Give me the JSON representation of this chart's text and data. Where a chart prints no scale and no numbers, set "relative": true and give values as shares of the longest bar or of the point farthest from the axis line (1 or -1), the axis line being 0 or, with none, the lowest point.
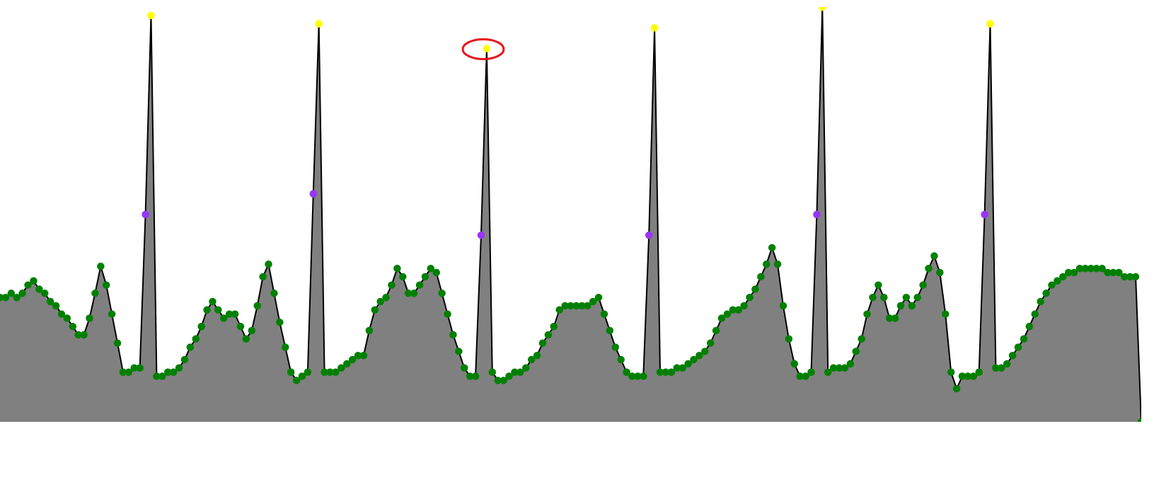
{
  "chart_data": {
    "type": "area",
    "relative": true,
    "marker": "circle",
    "categories": [
      null,
      null,
      null,
      null,
      null,
      null,
      null,
      null,
      null,
      null,
      null,
      null,
      null,
      null,
      null,
      null,
      null,
      null,
      null,
      null,
      null,
      null,
      null,
      null,
      null,
      null,
      null,
      null,
      null,
      null,
      null,
      null,
      null,
      null,
      null,
      null,
      null,
      null,
      null,
      null,
      null,
      null,
      null,
      null,
      null,
      null,
      null,
      null,
      null,
      null,
      null,
      null,
      null,
      null,
      null,
      null,
      null,
      null,
      null,
      null,
      null,
      null,
      null,
      null,
      null,
      null,
      null,
      null,
      null,
      null,
      null,
      null,
      null,
      null,
      null,
      null,
      null,
      null,
      null,
      null,
      null,
      null,
      null,
      null,
      null,
      null,
      null,
      null,
      null,
      null,
      null,
      null,
      null,
      null,
      null,
      null,
      null,
      null,
      null,
      null,
      null,
      null,
      null,
      null,
      null,
      null,
      null,
      null,
      null,
      null,
      null,
      null,
      null,
      null,
      null,
      null,
      null,
      null,
      null,
      null,
      null,
      null,
      null,
      null,
      null,
      null,
      null,
      null,
      null,
      null,
      null,
      null,
      null,
      null,
      null,
      null,
      null,
      null,
      null,
      null,
      null,
      null,
      null,
      null,
      null,
      null,
      null,
      null,
      null,
      null,
      null,
      null,
      null,
      null,
      null,
      null,
      null,
      null,
      null,
      null,
      null,
      null,
      null,
      null,
      null,
      null,
      null,
      null,
      null,
      null,
      null,
      null,
      null,
      null,
      null,
      null,
      null,
      null,
      null,
      null,
      null,
      null,
      null,
      null,
      null,
      null,
      null,
      null,
      null,
      null,
      null,
      null,
      null,
      null,
      null,
      null,
      null,
      null,
      null,
      null,
      null,
      null,
      null,
      null,
      null
    ],
    "series": [
      {
        "color": "#808080",
        "values": [
          0.3,
          0.3,
          0.31,
          0.3,
          0.31,
          0.33,
          0.34,
          0.32,
          0.31,
          0.29,
          0.28,
          0.26,
          0.25,
          0.23,
          0.21,
          0.21,
          0.25,
          0.31,
          0.375,
          0.33,
          0.26,
          0.19,
          0.12,
          0.12,
          0.13,
          0.13,
          0.5,
          0.98,
          0.11,
          0.11,
          0.12,
          0.12,
          0.13,
          0.15,
          0.18,
          0.2,
          0.23,
          0.27,
          0.29,
          0.27,
          0.25,
          0.26,
          0.26,
          0.23,
          0.2,
          0.22,
          0.28,
          0.35,
          0.38,
          0.31,
          0.24,
          0.18,
          0.12,
          0.1,
          0.11,
          0.12,
          0.55,
          0.96,
          0.12,
          0.12,
          0.12,
          0.13,
          0.14,
          0.15,
          0.16,
          0.16,
          0.22,
          0.27,
          0.29,
          0.3,
          0.33,
          0.37,
          0.35,
          0.31,
          0.31,
          0.33,
          0.35,
          0.37,
          0.36,
          0.31,
          0.26,
          0.21,
          0.17,
          0.13,
          0.11,
          0.11,
          0.45,
          0.9,
          0.12,
          0.1,
          0.1,
          0.11,
          0.12,
          0.12,
          0.13,
          0.15,
          0.16,
          0.19,
          0.21,
          0.23,
          0.27,
          0.28,
          0.28,
          0.28,
          0.28,
          0.28,
          0.29,
          0.3,
          0.26,
          0.22,
          0.18,
          0.15,
          0.12,
          0.11,
          0.11,
          0.11,
          0.45,
          0.95,
          0.12,
          0.12,
          0.12,
          0.13,
          0.13,
          0.14,
          0.15,
          0.16,
          0.17,
          0.19,
          0.22,
          0.25,
          0.26,
          0.27,
          0.27,
          0.28,
          0.3,
          0.32,
          0.35,
          0.38,
          0.42,
          0.38,
          0.28,
          0.2,
          0.14,
          0.11,
          0.11,
          0.12,
          0.5,
          1.0,
          0.12,
          0.13,
          0.13,
          0.13,
          0.14,
          0.17,
          0.2,
          0.26,
          0.3,
          0.33,
          0.3,
          0.25,
          0.25,
          0.28,
          0.3,
          0.28,
          0.3,
          0.33,
          0.37,
          0.4,
          0.36,
          0.26,
          0.12,
          0.08,
          0.11,
          0.11,
          0.11,
          0.12,
          0.5,
          0.96,
          0.13,
          0.13,
          0.14,
          0.16,
          0.18,
          0.2,
          0.23,
          0.26,
          0.29,
          0.31,
          0.33,
          0.34,
          0.35,
          0.36,
          0.36,
          0.37,
          0.37,
          0.37,
          0.37,
          0.37,
          0.36,
          0.36,
          0.36,
          0.35,
          0.35,
          0.35,
          0
        ],
        "colors": [
          "#008000",
          "#008000",
          "#008000",
          "#008000",
          "#008000",
          "#008000",
          "#008000",
          "#008000",
          "#008000",
          "#008000",
          "#008000",
          "#008000",
          "#008000",
          "#008000",
          "#008000",
          "#008000",
          "#008000",
          "#008000",
          "#008000",
          "#008000",
          "#008000",
          "#008000",
          "#008000",
          "#008000",
          "#008000",
          "#008000",
          "#9933ff",
          "#ffff00",
          "#008000",
          "#008000",
          "#008000",
          "#008000",
          "#008000",
          "#008000",
          "#008000",
          "#008000",
          "#008000",
          "#008000",
          "#008000",
          "#008000",
          "#008000",
          "#008000",
          "#008000",
          "#008000",
          "#008000",
          "#008000",
          "#008000",
          "#008000",
          "#008000",
          "#008000",
          "#008000",
          "#008000",
          "#008000",
          "#008000",
          "#008000",
          "#008000",
          "#9933ff",
          "#ffff00",
          "#008000",
          "#008000",
          "#008000",
          "#008000",
          "#008000",
          "#008000",
          "#008000",
          "#008000",
          "#008000",
          "#008000",
          "#008000",
          "#008000",
          "#008000",
          "#008000",
          "#008000",
          "#008000",
          "#008000",
          "#008000",
          "#008000",
          "#008000",
          "#008000",
          "#008000",
          "#008000",
          "#008000",
          "#008000",
          "#008000",
          "#008000",
          "#008000",
          "#9933ff",
          "#ffff00",
          "#008000",
          "#008000",
          "#008000",
          "#008000",
          "#008000",
          "#008000",
          "#008000",
          "#008000",
          "#008000",
          "#008000",
          "#008000",
          "#008000",
          "#008000",
          "#008000",
          "#008000",
          "#008000",
          "#008000",
          "#008000",
          "#008000",
          "#008000",
          "#008000",
          "#008000",
          "#008000",
          "#008000",
          "#008000",
          "#008000",
          "#008000",
          "#008000",
          "#9933ff",
          "#ffff00",
          "#008000",
          "#008000",
          "#008000",
          "#008000",
          "#008000",
          "#008000",
          "#008000",
          "#008000",
          "#008000",
          "#008000",
          "#008000",
          "#008000",
          "#008000",
          "#008000",
          "#008000",
          "#008000",
          "#008000",
          "#008000",
          "#008000",
          "#008000",
          "#008000",
          "#008000",
          "#008000",
          "#008000",
          "#008000",
          "#008000",
          "#008000",
          "#008000",
          "#9933ff",
          "#ffff00",
          "#008000",
          "#008000",
          "#008000",
          "#008000",
          "#008000",
          "#008000",
          "#008000",
          "#008000",
          "#008000",
          "#008000",
          "#008000",
          "#008000",
          "#008000",
          "#008000",
          "#008000",
          "#008000",
          "#008000",
          "#008000",
          "#008000",
          "#008000",
          "#008000",
          "#008000",
          "#008000",
          "#008000",
          "#008000",
          "#008000",
          "#008000",
          "#008000",
          "#9933ff",
          "#ffff00",
          "#008000",
          "#008000",
          "#008000",
          "#008000",
          "#008000",
          "#008000",
          "#008000",
          "#008000",
          "#008000",
          "#008000",
          "#008000",
          "#008000",
          "#008000",
          "#008000",
          "#008000",
          "#008000",
          "#008000",
          "#008000",
          "#008000",
          "#008000",
          "#008000",
          "#008000",
          "#008000",
          "#008000",
          "#008000",
          "#008000",
          "#008000"
        ]
      }
    ]
  }
}
